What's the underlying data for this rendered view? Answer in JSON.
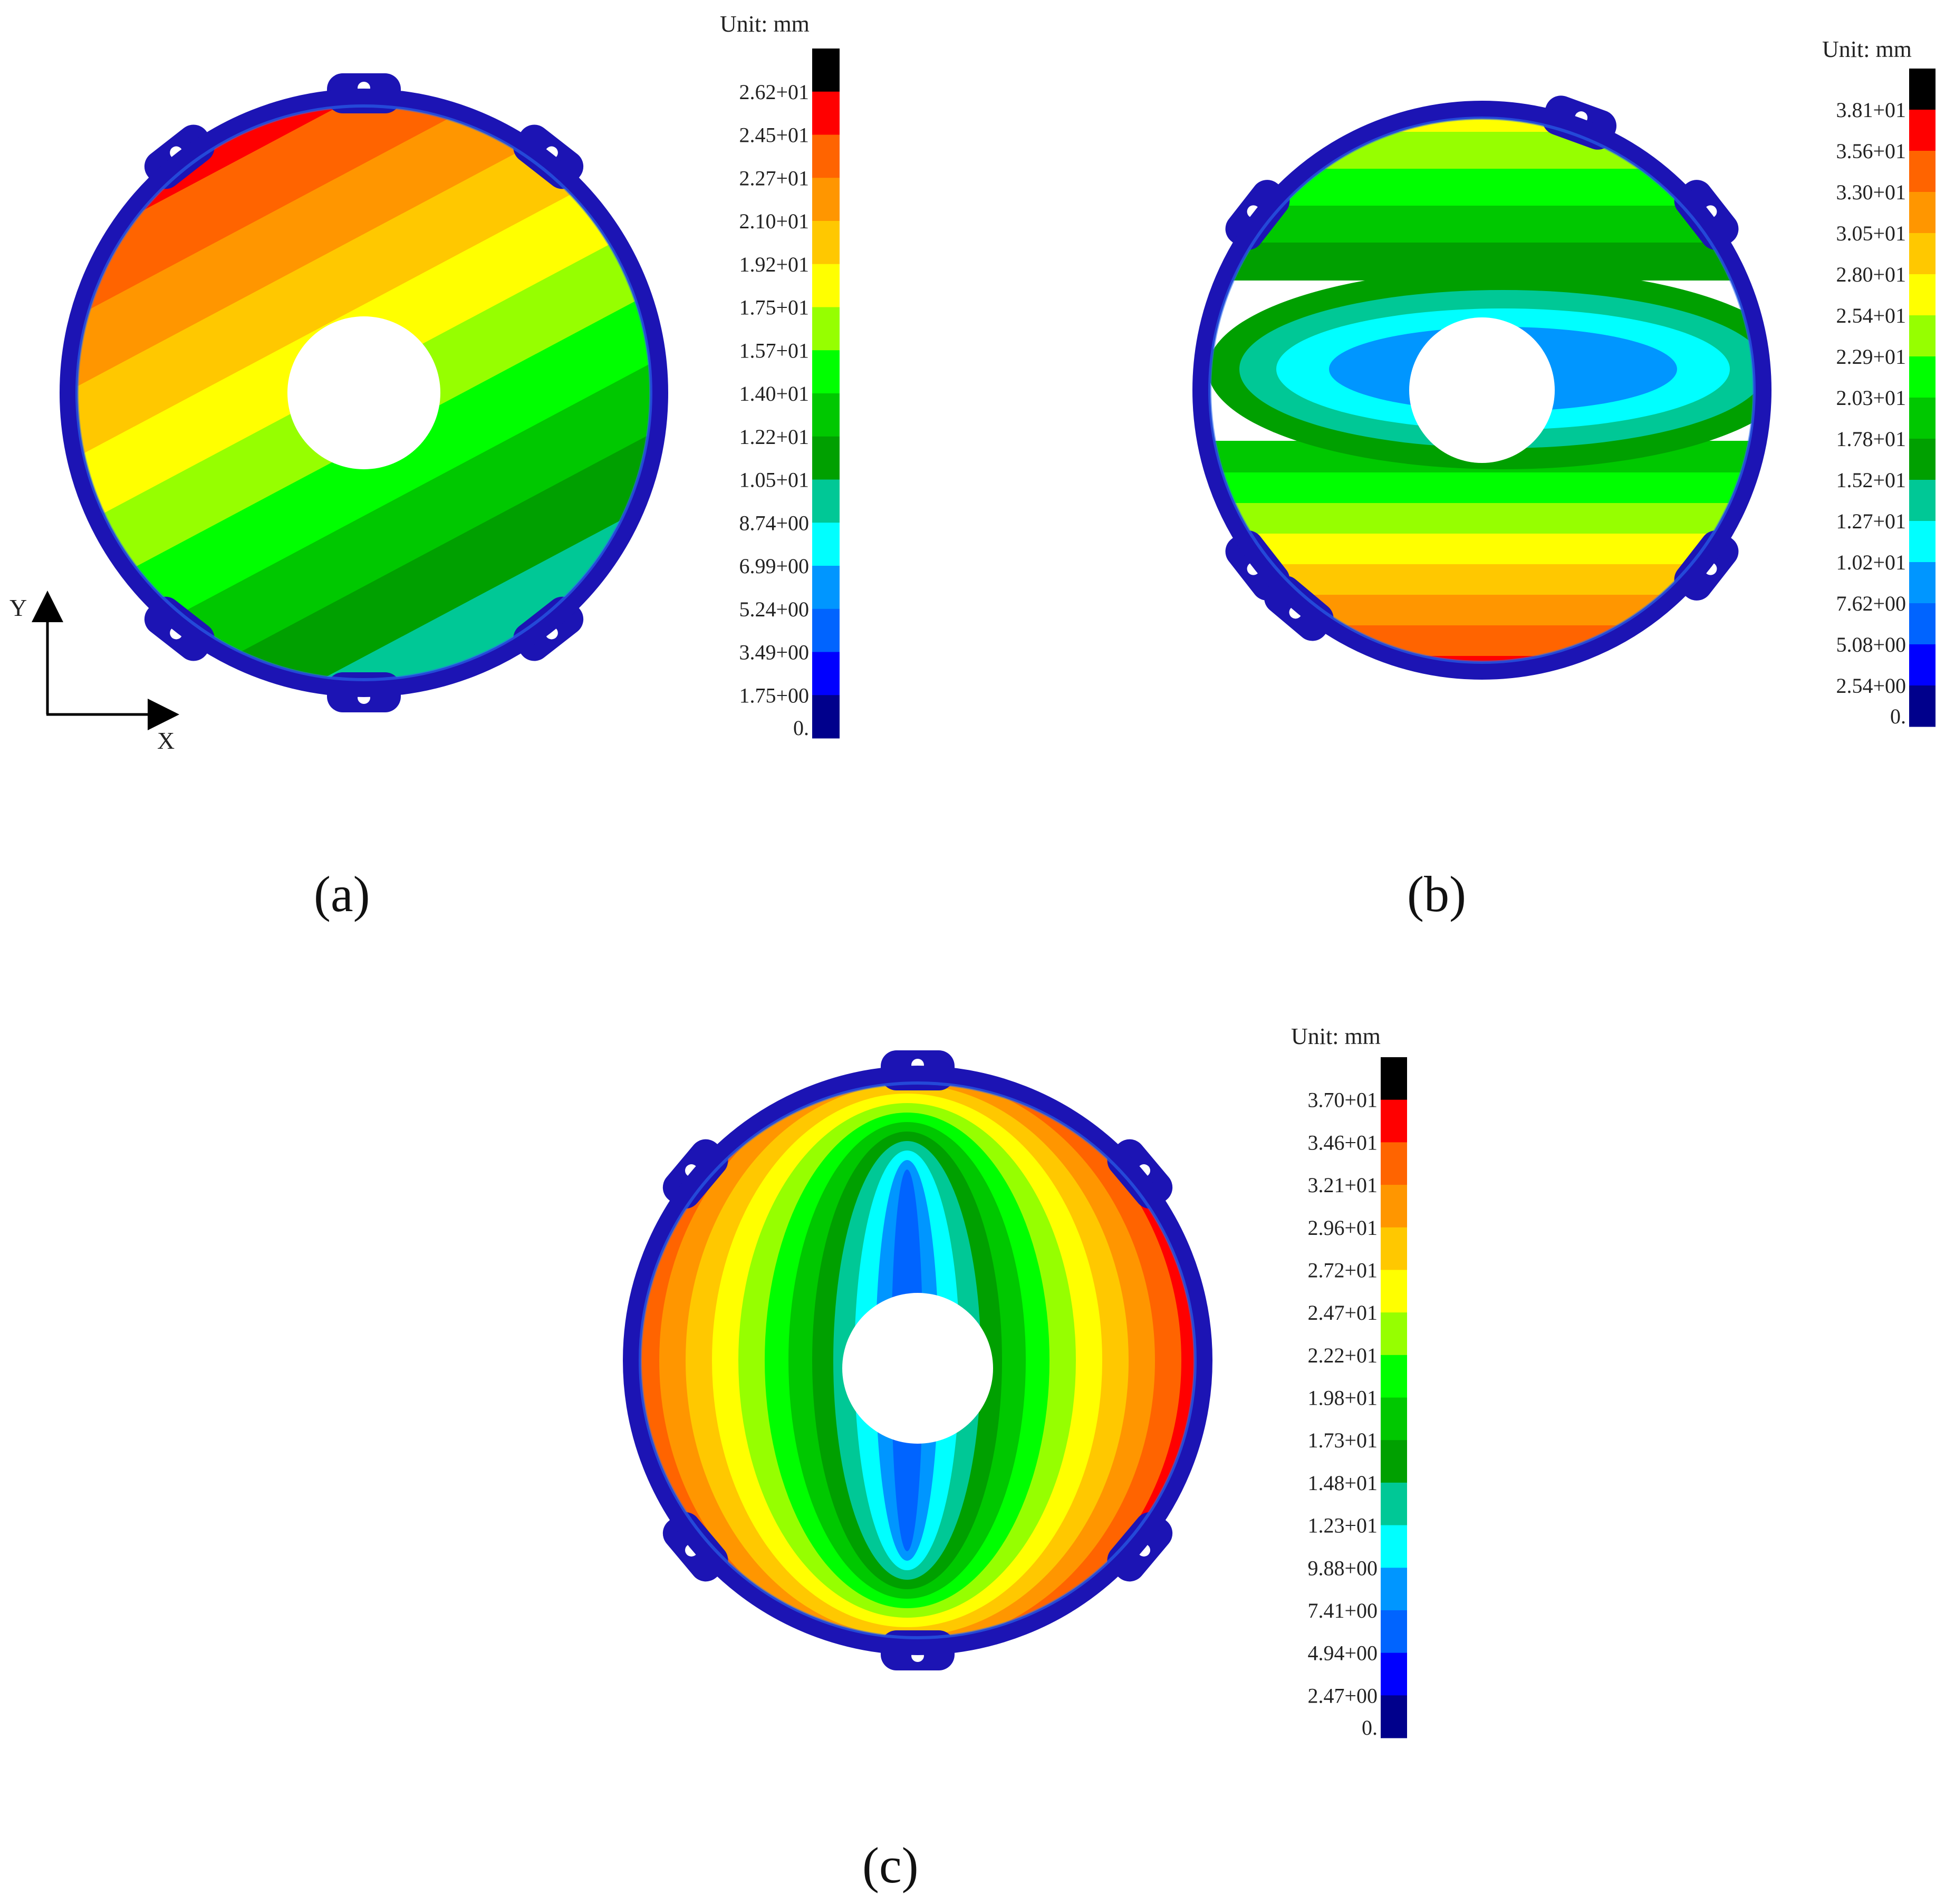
{
  "legend_colors": [
    "#00008c",
    "#0000ff",
    "#0064ff",
    "#0096ff",
    "#00ffff",
    "#00c896",
    "#00a000",
    "#00c800",
    "#00ff00",
    "#96ff00",
    "#ffff00",
    "#ffc800",
    "#ff9600",
    "#ff6400",
    "#ff0000",
    "#000000"
  ],
  "frame_color": "#1c14b4",
  "panels": [
    {
      "id": "a",
      "caption": "(a)",
      "unit_label": "Unit: mm",
      "legend_ticks": [
        "2.62+01",
        "2.45+01",
        "2.27+01",
        "2.10+01",
        "1.92+01",
        "1.75+01",
        "1.57+01",
        "1.40+01",
        "1.22+01",
        "1.05+01",
        "8.74+00",
        "6.99+00",
        "5.24+00",
        "3.49+00",
        "1.75+00",
        "0."
      ],
      "contour_pattern": "diagonal-bands",
      "max_region": "upper-left",
      "min_region": "lower-right"
    },
    {
      "id": "b",
      "caption": "(b)",
      "unit_label": "Unit: mm",
      "legend_ticks": [
        "3.81+01",
        "3.56+01",
        "3.30+01",
        "3.05+01",
        "2.80+01",
        "2.54+01",
        "2.29+01",
        "2.03+01",
        "1.78+01",
        "1.52+01",
        "1.27+01",
        "1.02+01",
        "7.62+00",
        "5.08+00",
        "2.54+00",
        "0."
      ],
      "contour_pattern": "horizontal-ellipses",
      "max_region": "bottom",
      "min_region": "center"
    },
    {
      "id": "c",
      "caption": "(c)",
      "unit_label": "Unit: mm",
      "legend_ticks": [
        "3.70+01",
        "3.46+01",
        "3.21+01",
        "2.96+01",
        "2.72+01",
        "2.47+01",
        "2.22+01",
        "1.98+01",
        "1.73+01",
        "1.48+01",
        "1.23+01",
        "9.88+00",
        "7.41+00",
        "4.94+00",
        "2.47+00",
        "0."
      ],
      "contour_pattern": "vertical-ellipses",
      "max_region": "right",
      "min_region": "center"
    }
  ],
  "axes": {
    "y_label": "Y",
    "x_label": "X"
  }
}
